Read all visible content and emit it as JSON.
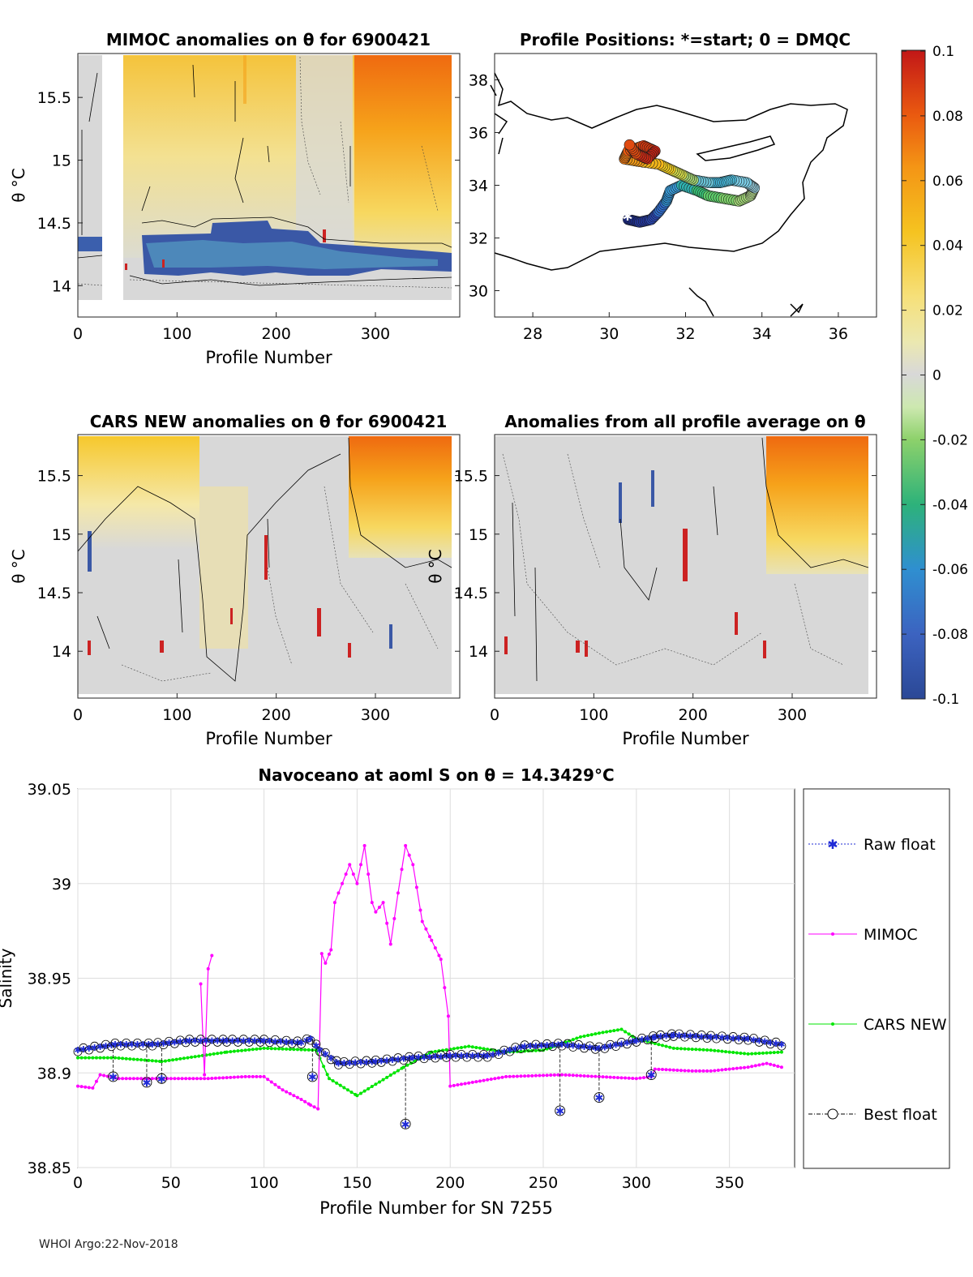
{
  "footer": "WHOI Argo:22-Nov-2018",
  "colors": {
    "raw_float": "#1f2bd6",
    "mimoc": "#ff00ff",
    "cars": "#00e600",
    "best": "#000000",
    "land": "#000000"
  },
  "colorbar": {
    "ticks": [
      "0.1",
      "0.08",
      "0.06",
      "0.04",
      "0.02",
      "0",
      "-0.02",
      "-0.04",
      "-0.06",
      "-0.08",
      "-0.1"
    ],
    "range": [
      -0.1,
      0.1
    ]
  },
  "chart_data": [
    {
      "id": "mimoc",
      "type": "heatmap",
      "title": "MIMOC anomalies on θ  for 6900421",
      "xlabel": "Profile Number",
      "ylabel": "θ °C",
      "xticks": [
        "0",
        "100",
        "200",
        "300"
      ],
      "yticks": [
        "15.5",
        "15",
        "14.5",
        "14"
      ],
      "xlim": [
        0,
        385
      ],
      "ylim": [
        13.75,
        15.85
      ]
    },
    {
      "id": "positions",
      "type": "scatter",
      "title": "Profile Positions: *=start; 0 = DMQC",
      "xticks": [
        "28",
        "30",
        "32",
        "34",
        "36"
      ],
      "yticks": [
        "38",
        "36",
        "34",
        "32",
        "30"
      ],
      "xlim": [
        27,
        37
      ],
      "ylim": [
        29,
        39
      ]
    },
    {
      "id": "cars",
      "type": "heatmap",
      "title": "CARS NEW anomalies on θ for 6900421",
      "xlabel": "Profile Number",
      "ylabel": "θ °C",
      "xticks": [
        "0",
        "100",
        "200",
        "300"
      ],
      "yticks": [
        "15.5",
        "15",
        "14.5",
        "14"
      ],
      "xlim": [
        0,
        385
      ],
      "ylim": [
        13.6,
        15.85
      ]
    },
    {
      "id": "avg",
      "type": "heatmap",
      "title": "Anomalies from all profile average on θ",
      "xlabel": "Profile Number",
      "ylabel": "θ °C",
      "xticks": [
        "0",
        "100",
        "200",
        "300"
      ],
      "yticks": [
        "15.5",
        "15",
        "14.5",
        "14"
      ],
      "xlim": [
        0,
        385
      ],
      "ylim": [
        13.6,
        15.85
      ]
    },
    {
      "id": "salinity",
      "type": "line",
      "title": "Navoceano at aoml S on θ = 14.3429°C",
      "xlabel": "Profile Number for SN 7255",
      "ylabel": "Salinity",
      "xticks": [
        "0",
        "50",
        "100",
        "150",
        "200",
        "250",
        "300",
        "350"
      ],
      "yticks": [
        "39.05",
        "39",
        "38.95",
        "38.9",
        "38.85"
      ],
      "xlim": [
        0,
        385
      ],
      "ylim": [
        38.85,
        39.05
      ],
      "legend": [
        "Raw float",
        "MIMOC",
        "CARS NEW",
        "Best float"
      ],
      "series": [
        {
          "name": "Best float",
          "x": [
            0,
            20,
            40,
            60,
            80,
            100,
            120,
            125,
            130,
            140,
            160,
            180,
            200,
            220,
            240,
            260,
            280,
            300,
            310,
            320,
            340,
            360,
            378
          ],
          "y": [
            38.912,
            38.915,
            38.915,
            38.917,
            38.917,
            38.917,
            38.916,
            38.918,
            38.912,
            38.905,
            38.906,
            38.908,
            38.909,
            38.909,
            38.914,
            38.915,
            38.913,
            38.917,
            38.919,
            38.92,
            38.919,
            38.918,
            38.915
          ]
        },
        {
          "name": "Best float dips",
          "x": [
            19,
            37,
            45,
            126,
            176,
            259,
            280,
            308
          ],
          "y": [
            38.898,
            38.895,
            38.897,
            38.898,
            38.873,
            38.88,
            38.887,
            38.899
          ]
        },
        {
          "name": "MIMOC",
          "x": [
            0,
            8,
            12,
            22,
            30,
            50,
            70,
            90,
            100,
            110,
            120,
            125,
            129,
            131,
            133,
            136,
            138,
            142,
            146,
            150,
            154,
            158,
            160,
            164,
            168,
            172,
            176,
            180,
            185,
            190,
            195,
            199,
            200,
            230,
            260,
            280,
            300,
            308,
            310,
            330,
            340,
            350,
            360,
            370,
            378
          ],
          "y": [
            38.893,
            38.892,
            38.899,
            38.897,
            38.897,
            38.897,
            38.897,
            38.898,
            38.898,
            38.891,
            38.886,
            38.883,
            38.881,
            38.963,
            38.958,
            38.965,
            38.99,
            39.0,
            39.01,
            39.0,
            39.02,
            38.99,
            38.985,
            38.99,
            38.968,
            38.995,
            39.02,
            39.01,
            38.98,
            38.97,
            38.96,
            38.93,
            38.893,
            38.898,
            38.899,
            38.898,
            38.897,
            38.898,
            38.902,
            38.901,
            38.901,
            38.902,
            38.903,
            38.905,
            38.903
          ]
        },
        {
          "name": "MIMOC spike",
          "x": [
            66,
            68,
            70,
            72
          ],
          "y": [
            38.947,
            38.899,
            38.955,
            38.962
          ]
        },
        {
          "name": "CARS NEW",
          "x": [
            0,
            20,
            45,
            80,
            100,
            128,
            135,
            150,
            160,
            175,
            190,
            210,
            230,
            250,
            270,
            280,
            292,
            300,
            320,
            340,
            360,
            378
          ],
          "y": [
            38.908,
            38.908,
            38.906,
            38.911,
            38.913,
            38.912,
            38.897,
            38.888,
            38.894,
            38.903,
            38.911,
            38.914,
            38.911,
            38.912,
            38.919,
            38.921,
            38.923,
            38.918,
            38.913,
            38.912,
            38.91,
            38.911
          ]
        }
      ]
    }
  ]
}
